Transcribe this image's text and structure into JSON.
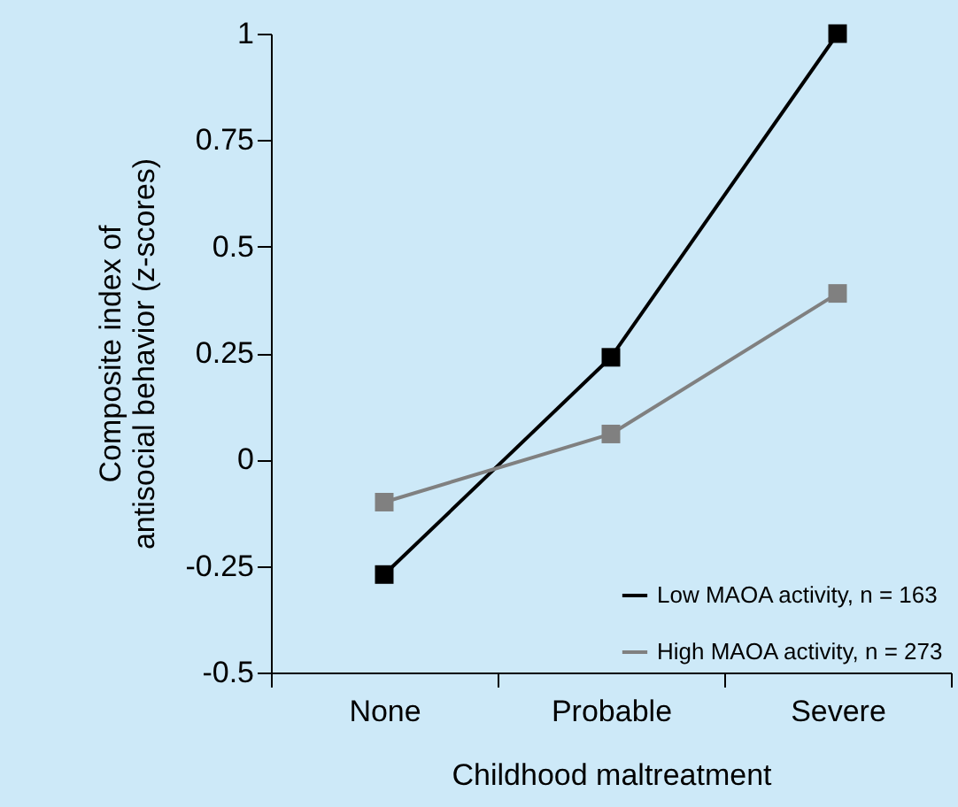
{
  "chart_data": {
    "type": "line",
    "xlabel": "Childhood maltreatment",
    "ylabel": "Composite index of\nantisocial behavior (z-scores)",
    "categories": [
      "None",
      "Probable",
      "Severe"
    ],
    "series": [
      {
        "name": "Low MAOA activity, n = 163",
        "color": "#000000",
        "values": [
          -0.27,
          0.24,
          1.0
        ]
      },
      {
        "name": "High MAOA activity, n = 273",
        "color": "#808080",
        "values": [
          -0.1,
          0.06,
          0.39
        ]
      }
    ],
    "ylim": [
      -0.5,
      1
    ],
    "yticks": [
      -0.5,
      -0.25,
      0,
      0.25,
      0.5,
      0.75,
      1
    ],
    "grid": false,
    "legend": "bottom right",
    "marker": "square",
    "line_style": "solid"
  }
}
